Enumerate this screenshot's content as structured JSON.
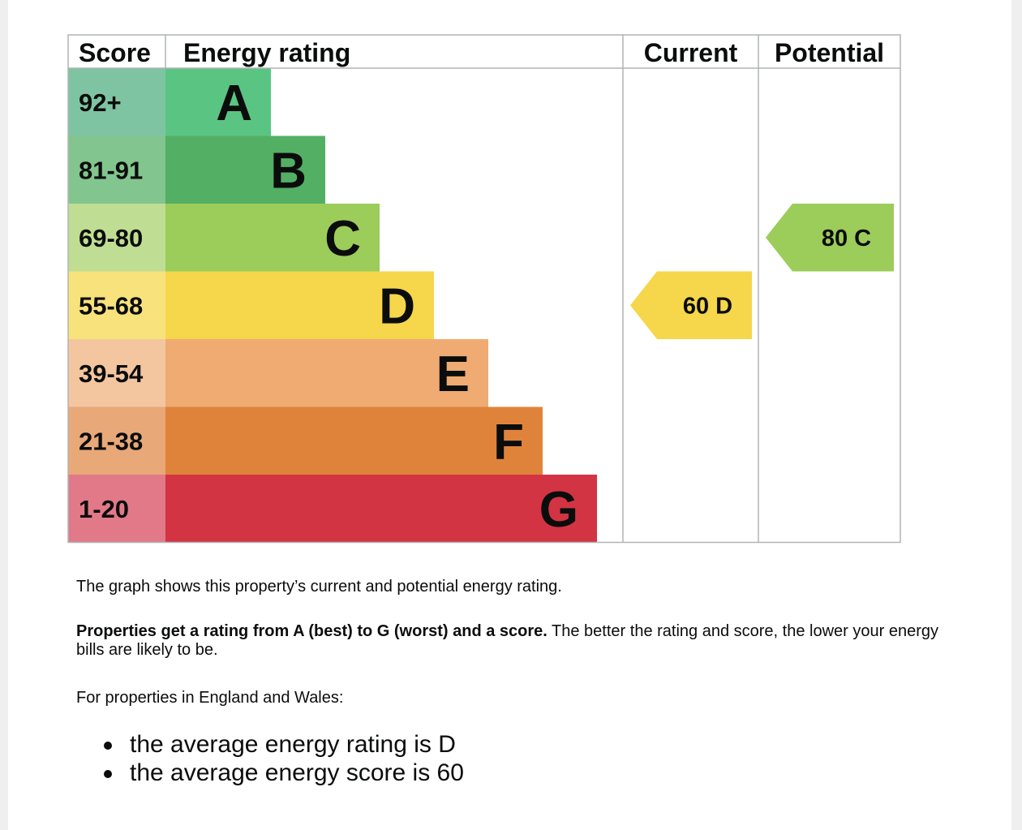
{
  "chart_data": {
    "type": "bar",
    "headers": {
      "score": "Score",
      "rating": "Energy rating",
      "current": "Current",
      "potential": "Potential"
    },
    "bands": [
      {
        "range": "92+",
        "letter": "A",
        "color": "#5ac582",
        "score_color": "#7fc4a2"
      },
      {
        "range": "81-91",
        "letter": "B",
        "color": "#52af64",
        "score_color": "#82c58e"
      },
      {
        "range": "69-80",
        "letter": "C",
        "color": "#9ccc5a",
        "score_color": "#bfde93"
      },
      {
        "range": "55-68",
        "letter": "D",
        "color": "#f6d64a",
        "score_color": "#f8e27c"
      },
      {
        "range": "39-54",
        "letter": "E",
        "color": "#efab72",
        "score_color": "#f3c6a0"
      },
      {
        "range": "21-38",
        "letter": "F",
        "color": "#e0833a",
        "score_color": "#e8a878"
      },
      {
        "range": "1-20",
        "letter": "G",
        "color": "#d33443",
        "score_color": "#e27988"
      }
    ],
    "current": {
      "score": 60,
      "band": "D",
      "label": "60  D",
      "color": "#f6d64a"
    },
    "potential": {
      "score": 80,
      "band": "C",
      "label": "80  C",
      "color": "#9ccc5a"
    }
  },
  "text": {
    "intro": "The graph shows this property’s current and potential energy rating.",
    "range_bold": "Properties get a rating from A (best) to G (worst) and a score.",
    "range_rest": " The better the rating and score, the lower your energy bills are likely to be.",
    "region": "For properties in England and Wales:",
    "averages": [
      "the average energy rating is D",
      "the average energy score is 60"
    ]
  }
}
